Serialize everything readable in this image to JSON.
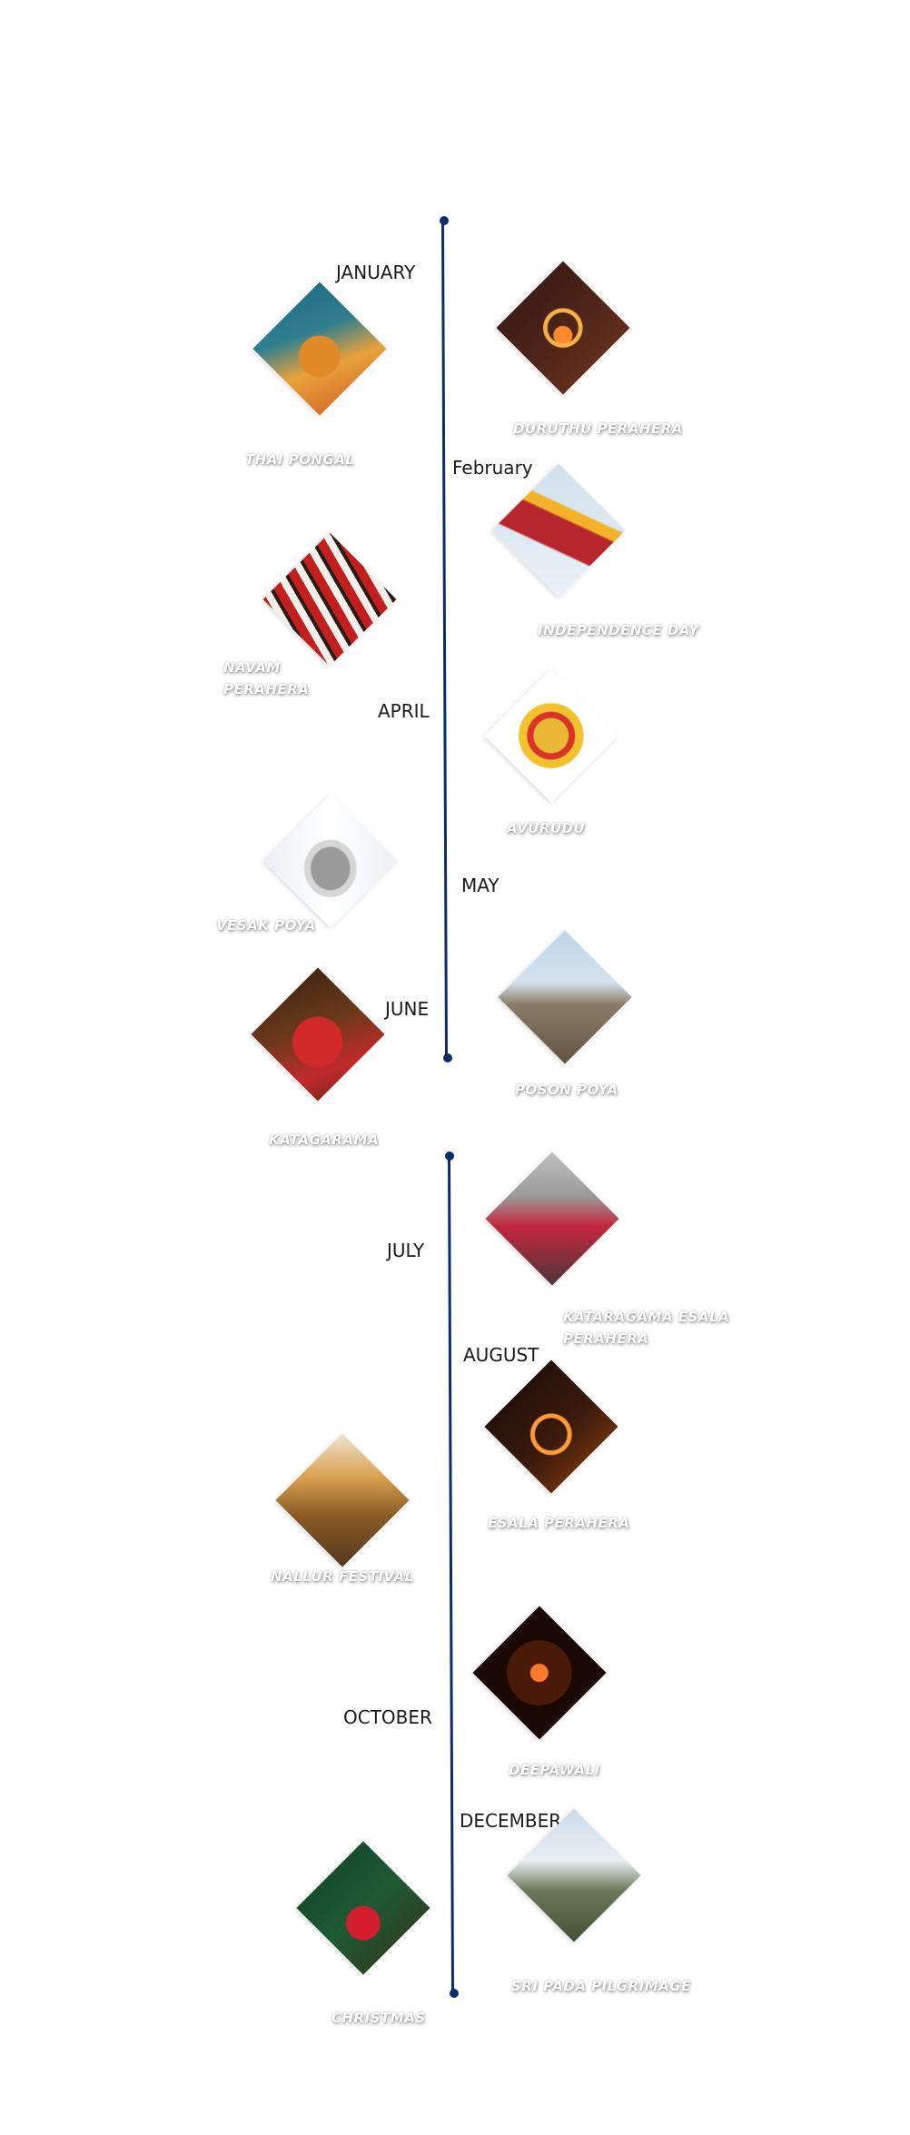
{
  "months": {
    "january": "JANUARY",
    "february": "February",
    "april": "APRIL",
    "may": "MAY",
    "june": "JUNE",
    "july": "JULY",
    "august": "AUGUST",
    "october": "OCTOBER",
    "december": "DECEMBER"
  },
  "festivals": {
    "thai_pongal": "THAI PONGAL",
    "duruthu_perahera": "DURUTHU PERAHERA",
    "independence_day": "INDEPENDENCE DAY",
    "navam_perahera": "NAVAM PERAHERA",
    "avurudu": "AVURUDU",
    "vesak_poya": "VESAK POYA",
    "poson_poya": "POSON POYA",
    "kataragama": "KATAGARAMA",
    "kataragama_esala_perahera": "KATARAGAMA ESALA PERAHERA",
    "esala_perahera": "ESALA PERAHERA",
    "nallur_festival": "NALLUR FESTIVAL",
    "deepawali": "DEEPAWALI",
    "christmas": "CHRISTMAS",
    "sri_pada_pilgrimage": "SRI PADA PILGRIMAGE"
  },
  "colors": {
    "timeline": "#0b2d6b"
  }
}
